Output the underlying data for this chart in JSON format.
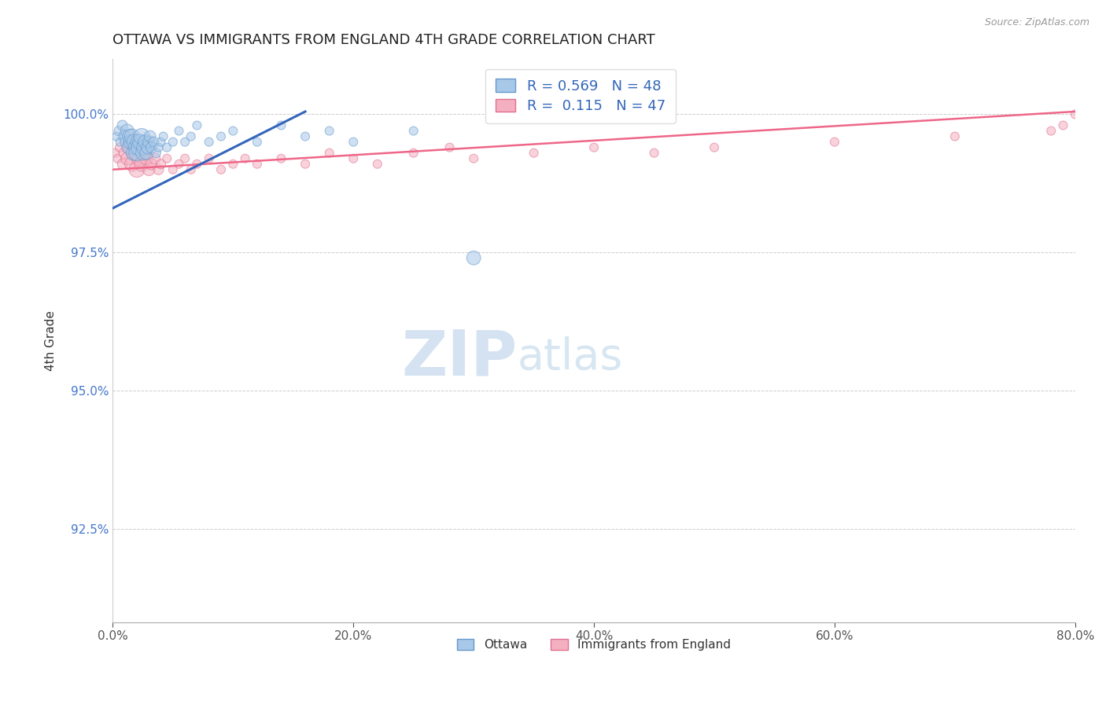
{
  "title": "OTTAWA VS IMMIGRANTS FROM ENGLAND 4TH GRADE CORRELATION CHART",
  "source": "Source: ZipAtlas.com",
  "ylabel": "4th Grade",
  "xlim": [
    0.0,
    80.0
  ],
  "ylim": [
    90.8,
    101.0
  ],
  "yticks": [
    92.5,
    95.0,
    97.5,
    100.0
  ],
  "ytick_labels": [
    "92.5%",
    "95.0%",
    "97.5%",
    "100.0%"
  ],
  "xticks": [
    0.0,
    20.0,
    40.0,
    60.0,
    80.0
  ],
  "xtick_labels": [
    "0.0%",
    "20.0%",
    "40.0%",
    "60.0%",
    "80.0%"
  ],
  "blue_R": 0.569,
  "blue_N": 48,
  "pink_R": 0.115,
  "pink_N": 47,
  "blue_color": "#a8c8e8",
  "pink_color": "#f4b0c0",
  "blue_edge_color": "#6699cc",
  "pink_edge_color": "#e07090",
  "blue_line_color": "#3366bb",
  "pink_line_color": "#ee6688",
  "background_color": "#ffffff",
  "watermark_zip": "ZIP",
  "watermark_atlas": "atlas",
  "ottawa_x": [
    0.3,
    0.5,
    0.6,
    0.8,
    1.0,
    1.1,
    1.2,
    1.3,
    1.4,
    1.5,
    1.6,
    1.7,
    1.8,
    1.9,
    2.0,
    2.1,
    2.2,
    2.3,
    2.4,
    2.5,
    2.6,
    2.7,
    2.8,
    2.9,
    3.0,
    3.1,
    3.2,
    3.4,
    3.6,
    3.8,
    4.0,
    4.2,
    4.5,
    5.0,
    5.5,
    6.0,
    6.5,
    7.0,
    8.0,
    9.0,
    10.0,
    12.0,
    14.0,
    16.0,
    18.0,
    20.0,
    25.0,
    30.0
  ],
  "ottawa_y": [
    99.6,
    99.7,
    99.5,
    99.8,
    99.6,
    99.5,
    99.7,
    99.4,
    99.6,
    99.5,
    99.6,
    99.3,
    99.5,
    99.4,
    99.3,
    99.5,
    99.4,
    99.5,
    99.6,
    99.3,
    99.4,
    99.5,
    99.3,
    99.4,
    99.5,
    99.6,
    99.4,
    99.5,
    99.3,
    99.4,
    99.5,
    99.6,
    99.4,
    99.5,
    99.7,
    99.5,
    99.6,
    99.8,
    99.5,
    99.6,
    99.7,
    99.5,
    99.8,
    99.6,
    99.7,
    99.5,
    99.7,
    97.4
  ],
  "ottawa_sizes": [
    25,
    30,
    25,
    35,
    50,
    45,
    60,
    55,
    70,
    65,
    75,
    70,
    80,
    70,
    85,
    75,
    90,
    80,
    85,
    70,
    75,
    65,
    60,
    55,
    50,
    45,
    40,
    35,
    30,
    25,
    25,
    25,
    25,
    25,
    25,
    25,
    25,
    25,
    25,
    25,
    25,
    25,
    25,
    25,
    25,
    25,
    25,
    65
  ],
  "england_x": [
    0.2,
    0.4,
    0.6,
    0.8,
    1.0,
    1.2,
    1.4,
    1.6,
    1.8,
    2.0,
    2.2,
    2.4,
    2.6,
    2.8,
    3.0,
    3.2,
    3.5,
    3.8,
    4.0,
    4.5,
    5.0,
    5.5,
    6.0,
    6.5,
    7.0,
    8.0,
    9.0,
    10.0,
    11.0,
    12.0,
    14.0,
    16.0,
    18.0,
    20.0,
    22.0,
    25.0,
    28.0,
    30.0,
    35.0,
    40.0,
    45.0,
    50.0,
    60.0,
    70.0,
    78.0,
    79.0,
    80.0
  ],
  "england_y": [
    99.3,
    99.2,
    99.4,
    99.1,
    99.3,
    99.2,
    99.4,
    99.1,
    99.3,
    99.0,
    99.2,
    99.1,
    99.3,
    99.2,
    99.0,
    99.1,
    99.2,
    99.0,
    99.1,
    99.2,
    99.0,
    99.1,
    99.2,
    99.0,
    99.1,
    99.2,
    99.0,
    99.1,
    99.2,
    99.1,
    99.2,
    99.1,
    99.3,
    99.2,
    99.1,
    99.3,
    99.4,
    99.2,
    99.3,
    99.4,
    99.3,
    99.4,
    99.5,
    99.6,
    99.7,
    99.8,
    100.0
  ],
  "england_sizes": [
    25,
    25,
    30,
    35,
    45,
    55,
    65,
    70,
    75,
    80,
    75,
    70,
    65,
    55,
    50,
    45,
    40,
    35,
    30,
    25,
    25,
    25,
    25,
    25,
    25,
    25,
    25,
    25,
    25,
    25,
    25,
    25,
    25,
    25,
    25,
    25,
    25,
    25,
    25,
    25,
    25,
    25,
    25,
    25,
    25,
    25,
    25
  ],
  "england_outlier_sizes": [
    130,
    25,
    25,
    25,
    30
  ]
}
